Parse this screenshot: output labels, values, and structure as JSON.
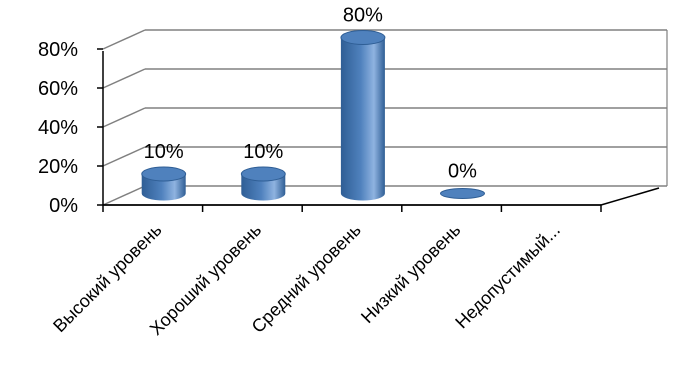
{
  "chart_data": {
    "type": "bar",
    "style": "3d-cylinder",
    "categories": [
      "Высокий уровень",
      "Хороший уровень",
      "Средний уровень",
      "Низкий уровень",
      "Недопустимый..."
    ],
    "values": [
      10,
      10,
      80,
      0,
      null
    ],
    "data_labels": [
      "10%",
      "10%",
      "80%",
      "0%",
      ""
    ],
    "yticks": [
      "0%",
      "20%",
      "40%",
      "60%",
      "80%"
    ],
    "ylim": [
      0,
      80
    ],
    "grid": true,
    "legend": "none",
    "colors": {
      "bar": "#4f81bd",
      "bar_dark": "#2f5e95",
      "bar_light": "#8fb3e0",
      "grid": "#808080",
      "axis": "#000000"
    }
  }
}
